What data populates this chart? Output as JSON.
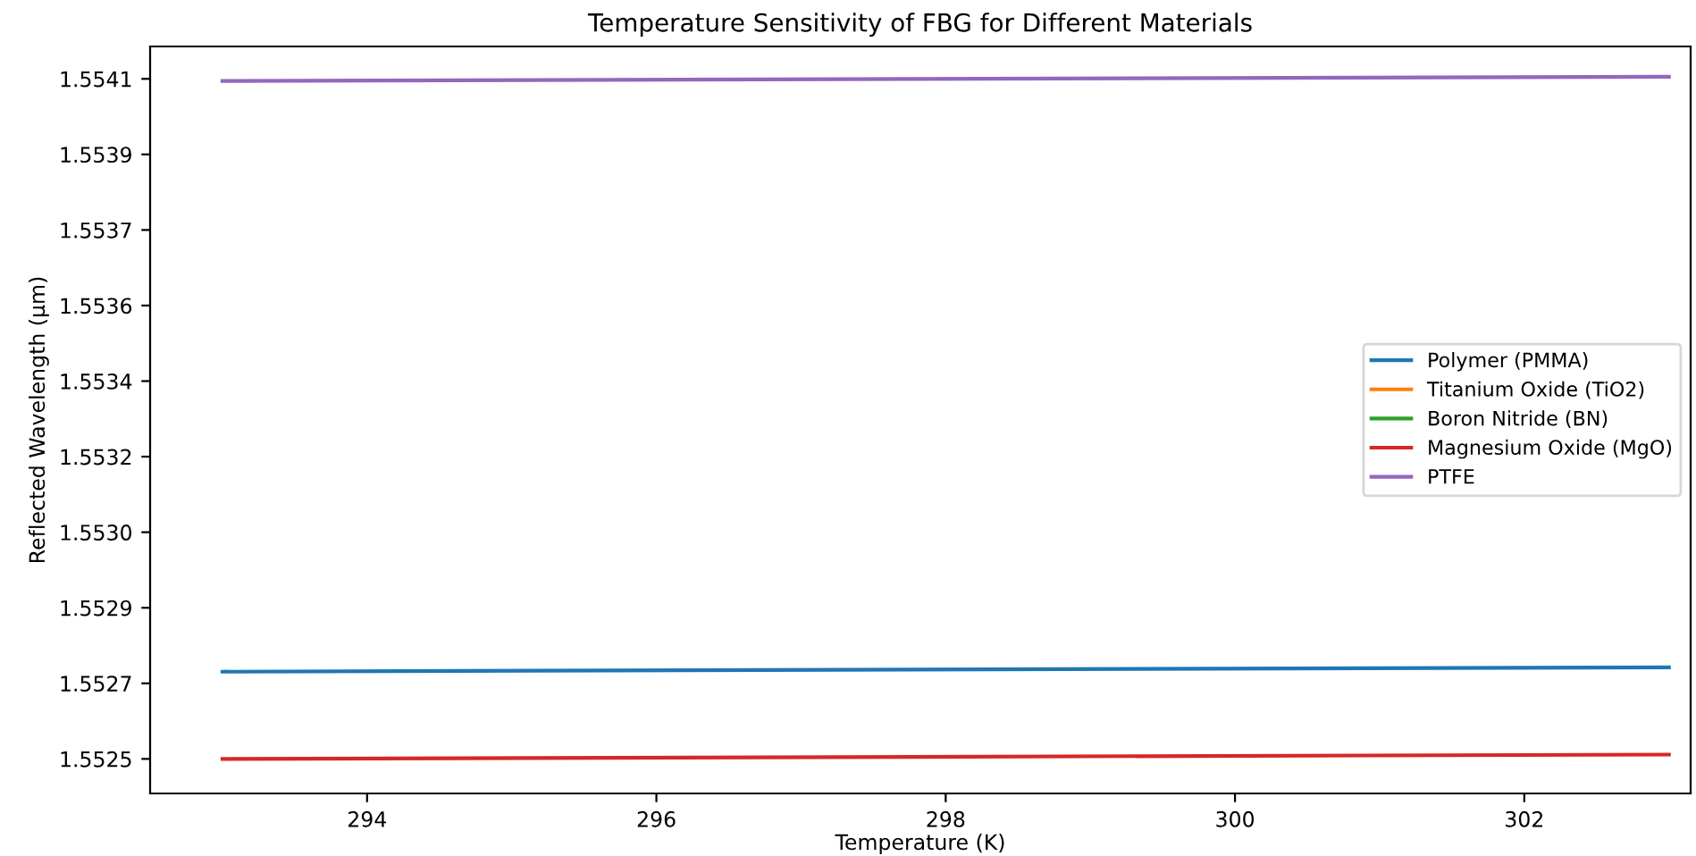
{
  "chart_data": {
    "type": "line",
    "title": "Temperature Sensitivity of FBG for Different Materials",
    "xlabel": "Temperature (K)",
    "ylabel": "Reflected Wavelength (μm)",
    "x": [
      293,
      303
    ],
    "series": [
      {
        "name": "Polymer (PMMA)",
        "color": "#1f77b4",
        "values": [
          1.552702,
          1.552712
        ]
      },
      {
        "name": "Titanium Oxide (TiO2)",
        "color": "#ff7f0e",
        "values": [
          null,
          null
        ]
      },
      {
        "name": "Boron Nitride (BN)",
        "color": "#2ca02c",
        "values": [
          null,
          null
        ]
      },
      {
        "name": "Magnesium Oxide (MgO)",
        "color": "#d62728",
        "values": [
          1.5525,
          1.55251
        ]
      },
      {
        "name": "PTFE",
        "color": "#9467bd",
        "values": [
          1.55407,
          1.55408
        ]
      }
    ],
    "xlim": [
      292.5,
      303.15
    ],
    "xticks": [
      294,
      296,
      298,
      300,
      302
    ],
    "ylim": [
      1.55242,
      1.55415
    ],
    "yticks": [
      {
        "value": 1.5525,
        "label": "1.5525"
      },
      {
        "value": 1.552675,
        "label": "1.5527"
      },
      {
        "value": 1.55285,
        "label": "1.5529"
      },
      {
        "value": 1.553025,
        "label": "1.5530"
      },
      {
        "value": 1.5532,
        "label": "1.5532"
      },
      {
        "value": 1.553375,
        "label": "1.5534"
      },
      {
        "value": 1.55355,
        "label": "1.5536"
      },
      {
        "value": 1.553725,
        "label": "1.5537"
      },
      {
        "value": 1.5539,
        "label": "1.5539"
      },
      {
        "value": 1.554075,
        "label": "1.5541"
      }
    ],
    "legend": "right",
    "grid": false
  }
}
